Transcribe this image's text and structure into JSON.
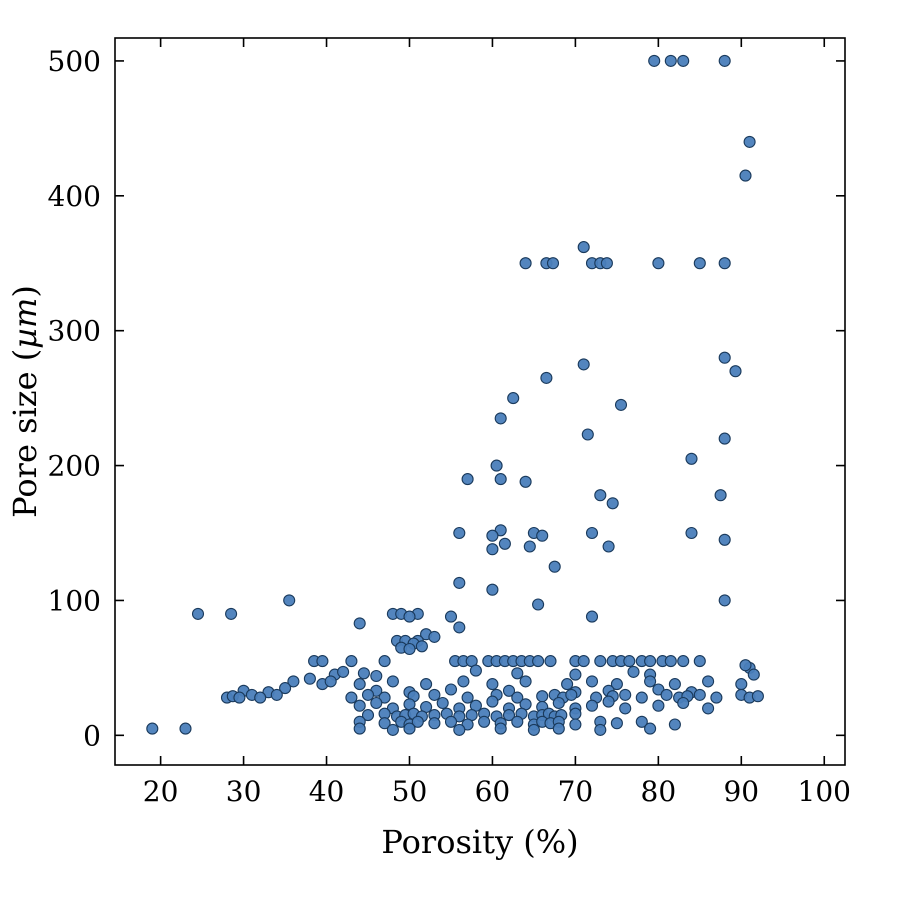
{
  "figure": {
    "background": "#ffffff",
    "axis_color": "#000000"
  },
  "chart_data": {
    "type": "scatter",
    "title": "",
    "xlabel": "Porosity (%)",
    "ylabel": "Pore size (µm)",
    "ylabel_parts": {
      "prefix": "Pore size (",
      "italic": "µm",
      "suffix": ")"
    },
    "xlim": [
      14.5,
      102.5
    ],
    "ylim": [
      -22,
      517
    ],
    "xticks": [
      20,
      30,
      40,
      50,
      60,
      70,
      80,
      90,
      100
    ],
    "yticks": [
      0,
      100,
      200,
      300,
      400,
      500
    ],
    "grid": false,
    "legend": "none",
    "marker": {
      "fill": "#4a7ebb",
      "stroke": "#1a3a5c",
      "radius": 5.5,
      "stroke_width": 1.1
    },
    "points": [
      [
        79.5,
        500
      ],
      [
        81.5,
        500
      ],
      [
        83,
        500
      ],
      [
        88,
        500
      ],
      [
        91,
        440
      ],
      [
        90.5,
        415
      ],
      [
        71,
        362
      ],
      [
        64,
        350
      ],
      [
        66.5,
        350
      ],
      [
        67.3,
        350
      ],
      [
        72,
        350
      ],
      [
        73,
        350
      ],
      [
        73.8,
        350
      ],
      [
        80,
        350
      ],
      [
        85,
        350
      ],
      [
        88,
        350
      ],
      [
        88,
        280
      ],
      [
        71,
        275
      ],
      [
        89.3,
        270
      ],
      [
        66.5,
        265
      ],
      [
        62.5,
        250
      ],
      [
        75.5,
        245
      ],
      [
        61,
        235
      ],
      [
        71.5,
        223
      ],
      [
        88,
        220
      ],
      [
        84,
        205
      ],
      [
        60.5,
        200
      ],
      [
        57,
        190
      ],
      [
        61,
        190
      ],
      [
        64,
        188
      ],
      [
        73,
        178
      ],
      [
        87.5,
        178
      ],
      [
        74.5,
        172
      ],
      [
        56,
        150
      ],
      [
        61,
        152
      ],
      [
        65,
        150
      ],
      [
        72,
        150
      ],
      [
        84,
        150
      ],
      [
        60,
        148
      ],
      [
        66,
        148
      ],
      [
        88,
        145
      ],
      [
        61.5,
        142
      ],
      [
        60,
        138
      ],
      [
        64.5,
        140
      ],
      [
        74,
        140
      ],
      [
        67.5,
        125
      ],
      [
        56,
        113
      ],
      [
        60,
        108
      ],
      [
        35.5,
        100
      ],
      [
        88,
        100
      ],
      [
        65.5,
        97
      ],
      [
        24.5,
        90
      ],
      [
        28.5,
        90
      ],
      [
        48,
        90
      ],
      [
        49,
        90
      ],
      [
        51,
        90
      ],
      [
        50,
        88
      ],
      [
        55,
        88
      ],
      [
        72,
        88
      ],
      [
        44,
        83
      ],
      [
        56,
        80
      ],
      [
        52,
        75
      ],
      [
        53,
        73
      ],
      [
        48.5,
        70
      ],
      [
        49.5,
        70
      ],
      [
        51,
        70
      ],
      [
        50.5,
        68
      ],
      [
        49,
        65
      ],
      [
        50,
        64
      ],
      [
        51.5,
        66
      ],
      [
        38.5,
        55
      ],
      [
        39.5,
        55
      ],
      [
        43,
        55
      ],
      [
        47,
        55
      ],
      [
        55.5,
        55
      ],
      [
        56.5,
        55
      ],
      [
        57.5,
        55
      ],
      [
        59.5,
        55
      ],
      [
        60.5,
        55
      ],
      [
        61.5,
        55
      ],
      [
        62.5,
        55
      ],
      [
        63.5,
        55
      ],
      [
        64.5,
        55
      ],
      [
        65.5,
        55
      ],
      [
        67,
        55
      ],
      [
        70,
        55
      ],
      [
        71,
        55
      ],
      [
        73,
        55
      ],
      [
        74.5,
        55
      ],
      [
        75.5,
        55
      ],
      [
        76.5,
        55
      ],
      [
        78,
        55
      ],
      [
        79,
        55
      ],
      [
        80.5,
        55
      ],
      [
        81.5,
        55
      ],
      [
        83,
        55
      ],
      [
        85,
        55
      ],
      [
        41,
        45
      ],
      [
        42,
        47
      ],
      [
        44.5,
        46
      ],
      [
        46,
        44
      ],
      [
        58,
        48
      ],
      [
        63,
        46
      ],
      [
        70,
        45
      ],
      [
        77,
        47
      ],
      [
        79,
        45
      ],
      [
        91,
        50
      ],
      [
        91.5,
        45
      ],
      [
        90.5,
        52
      ],
      [
        36,
        40
      ],
      [
        38,
        42
      ],
      [
        39.5,
        38
      ],
      [
        40.5,
        40
      ],
      [
        44,
        38
      ],
      [
        48,
        40
      ],
      [
        52,
        38
      ],
      [
        56.5,
        40
      ],
      [
        60,
        38
      ],
      [
        64,
        40
      ],
      [
        69,
        38
      ],
      [
        72,
        40
      ],
      [
        75,
        38
      ],
      [
        79,
        40
      ],
      [
        82,
        38
      ],
      [
        86,
        40
      ],
      [
        90,
        38
      ],
      [
        30,
        33
      ],
      [
        33,
        32
      ],
      [
        35,
        35
      ],
      [
        46,
        33
      ],
      [
        50,
        32
      ],
      [
        55,
        34
      ],
      [
        62,
        33
      ],
      [
        70,
        32
      ],
      [
        74,
        33
      ],
      [
        80,
        34
      ],
      [
        84,
        32
      ],
      [
        28,
        28
      ],
      [
        28.7,
        29
      ],
      [
        29.5,
        28
      ],
      [
        31,
        30
      ],
      [
        32,
        28
      ],
      [
        34,
        30
      ],
      [
        43,
        28
      ],
      [
        45,
        30
      ],
      [
        47,
        28
      ],
      [
        50.5,
        29
      ],
      [
        53,
        30
      ],
      [
        57,
        28
      ],
      [
        60.5,
        30
      ],
      [
        63,
        28
      ],
      [
        66,
        29
      ],
      [
        67.5,
        30
      ],
      [
        68.5,
        28
      ],
      [
        69.5,
        30
      ],
      [
        72.5,
        28
      ],
      [
        74.5,
        29
      ],
      [
        76,
        30
      ],
      [
        78,
        28
      ],
      [
        81,
        30
      ],
      [
        82.5,
        28
      ],
      [
        83.5,
        29
      ],
      [
        85,
        30
      ],
      [
        87,
        28
      ],
      [
        90,
        30
      ],
      [
        91,
        28
      ],
      [
        92,
        29
      ],
      [
        44,
        22
      ],
      [
        46,
        24
      ],
      [
        48,
        20
      ],
      [
        50,
        23
      ],
      [
        52,
        21
      ],
      [
        54,
        24
      ],
      [
        56,
        20
      ],
      [
        58,
        22
      ],
      [
        60,
        25
      ],
      [
        62,
        20
      ],
      [
        64,
        23
      ],
      [
        66,
        21
      ],
      [
        68,
        24
      ],
      [
        70,
        20
      ],
      [
        72,
        22
      ],
      [
        74,
        25
      ],
      [
        76,
        20
      ],
      [
        80,
        22
      ],
      [
        83,
        24
      ],
      [
        86,
        20
      ],
      [
        45,
        15
      ],
      [
        47,
        16
      ],
      [
        48.5,
        14
      ],
      [
        49.5,
        15
      ],
      [
        50.5,
        16
      ],
      [
        51.5,
        14
      ],
      [
        53,
        15
      ],
      [
        54.5,
        16
      ],
      [
        56,
        14
      ],
      [
        57.5,
        15
      ],
      [
        59,
        16
      ],
      [
        60.5,
        14
      ],
      [
        62,
        15
      ],
      [
        63.5,
        16
      ],
      [
        65,
        14
      ],
      [
        66,
        15
      ],
      [
        66.8,
        16
      ],
      [
        67.5,
        14
      ],
      [
        68.3,
        15
      ],
      [
        70,
        16
      ],
      [
        44,
        10
      ],
      [
        47,
        9
      ],
      [
        49,
        10
      ],
      [
        50,
        8
      ],
      [
        51,
        10
      ],
      [
        53,
        9
      ],
      [
        55,
        10
      ],
      [
        57,
        8
      ],
      [
        59,
        10
      ],
      [
        61,
        9
      ],
      [
        63,
        10
      ],
      [
        65,
        8
      ],
      [
        66,
        10
      ],
      [
        67,
        9
      ],
      [
        68,
        10
      ],
      [
        70,
        8
      ],
      [
        73,
        10
      ],
      [
        75,
        9
      ],
      [
        78,
        10
      ],
      [
        82,
        8
      ],
      [
        19,
        5
      ],
      [
        23,
        5
      ],
      [
        44,
        5
      ],
      [
        48,
        4
      ],
      [
        50,
        5
      ],
      [
        56,
        4
      ],
      [
        61,
        5
      ],
      [
        65,
        4
      ],
      [
        68,
        5
      ],
      [
        73,
        4
      ],
      [
        79,
        5
      ]
    ]
  }
}
